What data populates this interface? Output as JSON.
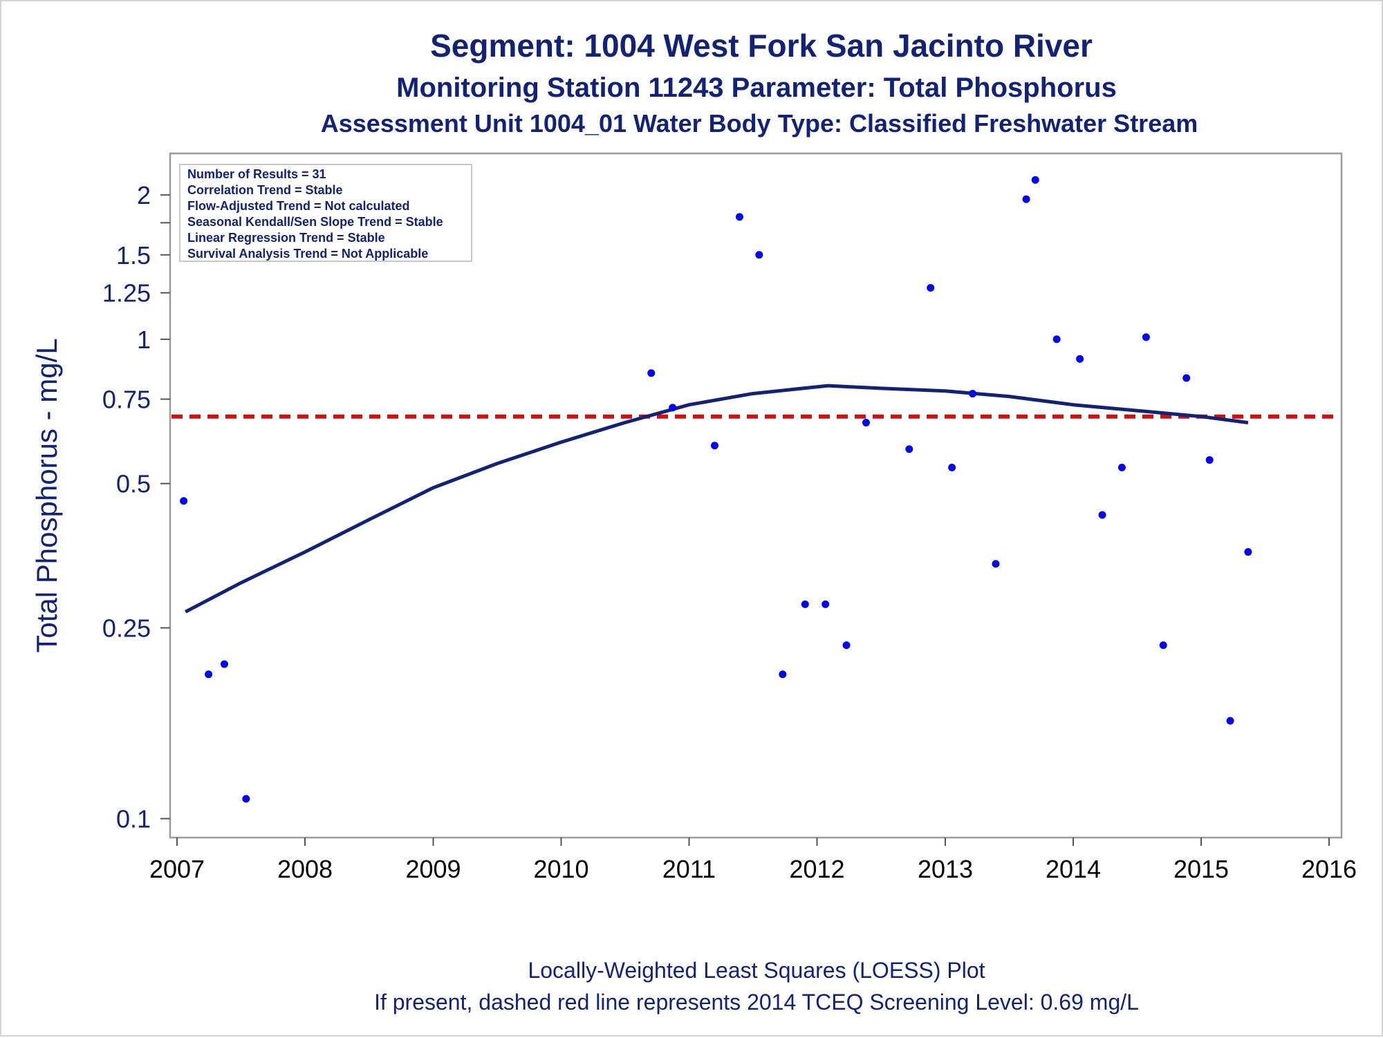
{
  "chart_data": {
    "type": "scatter",
    "title": "Segment: 1004  West Fork San Jacinto River",
    "subtitle": "Monitoring Station 11243 Parameter: Total Phosphorus",
    "subtitle2": "Assessment Unit 1004_01   Water Body Type: Classified Freshwater Stream",
    "ylabel": "Total Phosphorus - mg/L",
    "yscale": "log",
    "xlim": [
      "2007-01-01",
      "2016-01-01"
    ],
    "ylim": [
      0.095,
      2.3
    ],
    "x_ticks": [
      "2007",
      "2008",
      "2009",
      "2010",
      "2011",
      "2012",
      "2013",
      "2014",
      "2015",
      "2016"
    ],
    "y_ticks": [
      {
        "value": 0.1,
        "label": "0.1"
      },
      {
        "value": 0.25,
        "label": "0.25"
      },
      {
        "value": 0.5,
        "label": "0.5"
      },
      {
        "value": 0.75,
        "label": "0.75"
      },
      {
        "value": 1.0,
        "label": "1"
      },
      {
        "value": 1.25,
        "label": "1.25"
      },
      {
        "value": 1.5,
        "label": "1.5"
      },
      {
        "value": 1.75,
        "label": ""
      },
      {
        "value": 2.0,
        "label": "2"
      }
    ],
    "stats_box": [
      "Number of Results = 31",
      "Correlation Trend = Stable",
      "Flow-Adjusted Trend = Not calculated",
      "Seasonal Kendall/Sen Slope Trend = Stable",
      "Linear Regression Trend = Stable",
      "Survival Analysis Trend = Not Applicable"
    ],
    "screening_level": {
      "value": 0.69,
      "color": "#cc1111",
      "style": "dashed"
    },
    "series": [
      {
        "kind": "points",
        "color": "#0000ff",
        "points": [
          {
            "x": "2007-01-20",
            "y": 0.46
          },
          {
            "x": "2007-04-01",
            "y": 0.2
          },
          {
            "x": "2007-05-16",
            "y": 0.21
          },
          {
            "x": "2007-07-17",
            "y": 0.11
          },
          {
            "x": "2010-09-15",
            "y": 0.85
          },
          {
            "x": "2010-11-15",
            "y": 0.72
          },
          {
            "x": "2011-03-15",
            "y": 0.6
          },
          {
            "x": "2011-05-25",
            "y": 1.8
          },
          {
            "x": "2011-07-20",
            "y": 1.5
          },
          {
            "x": "2011-09-25",
            "y": 0.2
          },
          {
            "x": "2011-11-28",
            "y": 0.28
          },
          {
            "x": "2012-01-25",
            "y": 0.28
          },
          {
            "x": "2012-03-25",
            "y": 0.23
          },
          {
            "x": "2012-05-20",
            "y": 0.67
          },
          {
            "x": "2012-09-20",
            "y": 0.59
          },
          {
            "x": "2012-11-20",
            "y": 1.28
          },
          {
            "x": "2013-01-20",
            "y": 0.54
          },
          {
            "x": "2013-03-20",
            "y": 0.77
          },
          {
            "x": "2013-05-25",
            "y": 0.34
          },
          {
            "x": "2013-08-20",
            "y": 1.96
          },
          {
            "x": "2013-09-15",
            "y": 2.15
          },
          {
            "x": "2013-11-15",
            "y": 1.0
          },
          {
            "x": "2014-01-20",
            "y": 0.91
          },
          {
            "x": "2014-03-25",
            "y": 0.43
          },
          {
            "x": "2014-05-20",
            "y": 0.54
          },
          {
            "x": "2014-07-28",
            "y": 1.01
          },
          {
            "x": "2014-09-15",
            "y": 0.23
          },
          {
            "x": "2014-11-20",
            "y": 0.83
          },
          {
            "x": "2015-01-25",
            "y": 0.56
          },
          {
            "x": "2015-03-25",
            "y": 0.16
          },
          {
            "x": "2015-05-15",
            "y": 0.36
          }
        ]
      },
      {
        "kind": "loess",
        "color": "#112277",
        "points": [
          {
            "x": "2007-01-25",
            "y": 0.27
          },
          {
            "x": "2007-07-01",
            "y": 0.31
          },
          {
            "x": "2008-01-01",
            "y": 0.36
          },
          {
            "x": "2008-07-01",
            "y": 0.42
          },
          {
            "x": "2009-01-01",
            "y": 0.49
          },
          {
            "x": "2009-07-01",
            "y": 0.55
          },
          {
            "x": "2010-01-01",
            "y": 0.61
          },
          {
            "x": "2010-07-01",
            "y": 0.67
          },
          {
            "x": "2011-01-01",
            "y": 0.73
          },
          {
            "x": "2011-07-01",
            "y": 0.77
          },
          {
            "x": "2012-02-01",
            "y": 0.8
          },
          {
            "x": "2012-07-01",
            "y": 0.79
          },
          {
            "x": "2013-01-01",
            "y": 0.78
          },
          {
            "x": "2013-07-01",
            "y": 0.76
          },
          {
            "x": "2014-01-01",
            "y": 0.73
          },
          {
            "x": "2014-07-01",
            "y": 0.71
          },
          {
            "x": "2015-01-01",
            "y": 0.69
          },
          {
            "x": "2015-05-15",
            "y": 0.67
          }
        ]
      }
    ]
  },
  "footer": {
    "line1": "Locally-Weighted Least Squares (LOESS) Plot",
    "line2": "If present, dashed red line represents 2014 TCEQ Screening Level: 0.69 mg/L"
  }
}
